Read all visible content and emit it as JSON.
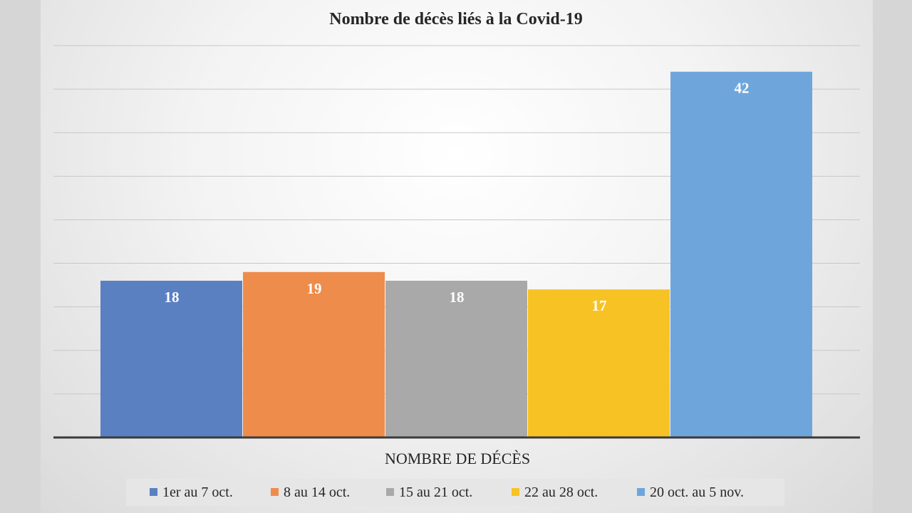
{
  "chart_data": {
    "type": "bar",
    "title": "Nombre de décès liés à la Covid-19",
    "xlabel": "NOMBRE DE DÉCÈS",
    "ylabel": "",
    "ylim": [
      0,
      45
    ],
    "grid": true,
    "legend_position": "bottom",
    "series": [
      {
        "name": "1er au 7 oct.",
        "values": [
          18
        ],
        "color": "#5b80c2"
      },
      {
        "name": "8 au 14 oct.",
        "values": [
          19
        ],
        "color": "#ee8c4c"
      },
      {
        "name": "15 au 21 oct.",
        "values": [
          18
        ],
        "color": "#a9a9a9"
      },
      {
        "name": "22 au 28 oct.",
        "values": [
          17
        ],
        "color": "#f7c324"
      },
      {
        "name": "20 oct. au 5 nov.",
        "values": [
          42
        ],
        "color": "#6ea6dc"
      }
    ]
  }
}
